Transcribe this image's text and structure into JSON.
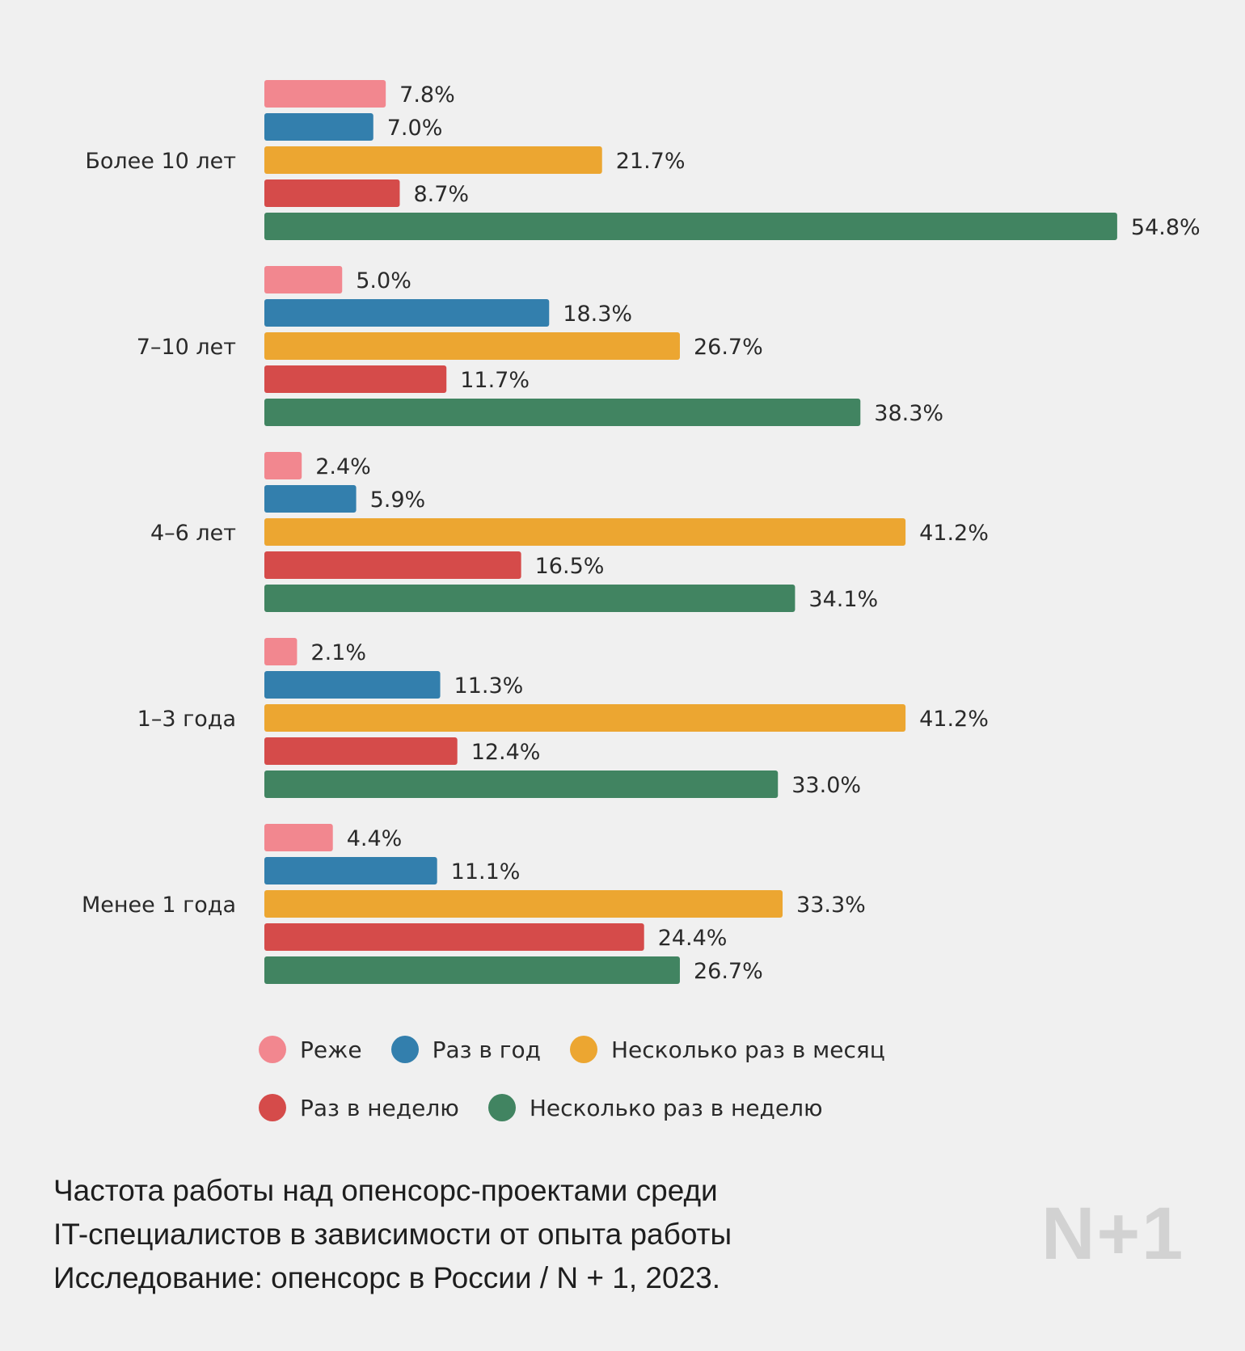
{
  "chart_data": {
    "type": "bar",
    "orientation": "horizontal",
    "categories": [
      "Более 10 лет",
      "7–10 лет",
      "4–6 лет",
      "1–3 года",
      "Менее 1 года"
    ],
    "series": [
      {
        "name": "Реже",
        "color": "#f2878f",
        "values": [
          7.8,
          5.0,
          2.4,
          2.1,
          4.4
        ],
        "labels": [
          "7.8%",
          "5.0%",
          "2.4%",
          "2.1%",
          "4.4%"
        ]
      },
      {
        "name": "Раз в год",
        "color": "#337fad",
        "values": [
          7.0,
          18.3,
          5.9,
          11.3,
          11.1
        ],
        "labels": [
          "7.0%",
          "18.3%",
          "5.9%",
          "11.3%",
          "11.1%"
        ]
      },
      {
        "name": "Несколько раз в месяц",
        "color": "#eca631",
        "values": [
          21.7,
          26.7,
          41.2,
          41.2,
          33.3
        ],
        "labels": [
          "21.7%",
          "26.7%",
          "41.2%",
          "41.2%",
          "33.3%"
        ]
      },
      {
        "name": "Раз в неделю",
        "color": "#d54b4a",
        "values": [
          8.7,
          11.7,
          16.5,
          12.4,
          24.4
        ],
        "labels": [
          "8.7%",
          "11.7%",
          "16.5%",
          "12.4%",
          "24.4%"
        ]
      },
      {
        "name": "Несколько раз в неделю",
        "color": "#418461",
        "values": [
          54.8,
          38.3,
          34.1,
          33.0,
          26.7
        ],
        "labels": [
          "54.8%",
          "38.3%",
          "34.1%",
          "33.0%",
          "26.7%"
        ]
      }
    ],
    "legend_position": "bottom",
    "grid": false
  },
  "legend": {
    "items": [
      {
        "label": "Реже",
        "color": "#f2878f"
      },
      {
        "label": "Раз в год",
        "color": "#337fad"
      },
      {
        "label": "Несколько раз в месяц",
        "color": "#eca631"
      },
      {
        "label": "Раз в неделю",
        "color": "#d54b4a"
      },
      {
        "label": "Несколько раз в неделю",
        "color": "#418461"
      }
    ]
  },
  "caption": {
    "line1": "Частота работы над опенсорс-проектами среди",
    "line2": "IT-специалистов в зависимости от опыта работы",
    "line3": "Исследование: опенсорс в России / N + 1, 2023."
  },
  "logo": {
    "text": "N+1",
    "color": "#d2d2d2"
  }
}
